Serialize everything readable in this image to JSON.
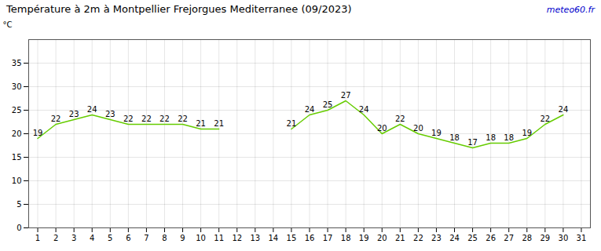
{
  "chart_data": {
    "type": "line",
    "title": "Température à 2m à Montpellier Frejorgues Mediterranee (09/2023)",
    "y_label": "°C",
    "annotations": [
      {
        "text": "meteo60.fr",
        "color": "#0000cc"
      }
    ],
    "x": [
      1,
      2,
      3,
      4,
      5,
      6,
      7,
      8,
      9,
      10,
      11,
      12,
      13,
      14,
      15,
      16,
      17,
      18,
      19,
      20,
      21,
      22,
      23,
      24,
      25,
      26,
      27,
      28,
      29,
      30,
      31
    ],
    "values": [
      19,
      22,
      23,
      24,
      23,
      22,
      22,
      22,
      22,
      21,
      21,
      null,
      null,
      null,
      21,
      24,
      25,
      27,
      24,
      20,
      22,
      20,
      19,
      18,
      17,
      18,
      18,
      19,
      22,
      24,
      null
    ],
    "color": "#66cc00",
    "xlim": [
      0.5,
      31.5
    ],
    "xticks": [
      1,
      2,
      3,
      4,
      5,
      6,
      7,
      8,
      9,
      10,
      11,
      12,
      13,
      14,
      15,
      16,
      17,
      18,
      19,
      20,
      21,
      22,
      23,
      24,
      25,
      26,
      27,
      28,
      29,
      30,
      31
    ],
    "ylim": [
      0,
      40
    ],
    "yticks": [
      0,
      5,
      10,
      15,
      20,
      25,
      30,
      35
    ],
    "grid": true,
    "data_labels": true
  }
}
